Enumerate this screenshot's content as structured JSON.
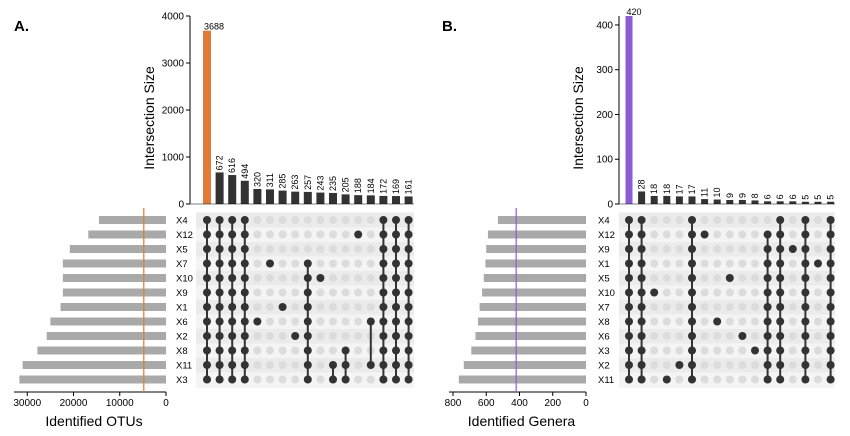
{
  "chart_data": [
    {
      "type": "upset",
      "panel_label": "A.",
      "y_axis_title": "Intersection Size",
      "set_axis_title": "Identified OTUs",
      "accent_color": "#e07b39",
      "bar_color": "#333333",
      "ylim": [
        0,
        4000
      ],
      "yticks": [
        0,
        1000,
        2000,
        3000,
        4000
      ],
      "set_xlim": [
        0,
        32000
      ],
      "set_ticks": [
        0,
        10000,
        20000,
        30000
      ],
      "set_reference_line": 4800,
      "sets": [
        {
          "name": "X4",
          "size": 14500
        },
        {
          "name": "X12",
          "size": 16800
        },
        {
          "name": "X5",
          "size": 20800
        },
        {
          "name": "X7",
          "size": 22300
        },
        {
          "name": "X10",
          "size": 22300
        },
        {
          "name": "X9",
          "size": 22300
        },
        {
          "name": "X1",
          "size": 22800
        },
        {
          "name": "X6",
          "size": 25000
        },
        {
          "name": "X2",
          "size": 25800
        },
        {
          "name": "X8",
          "size": 27800
        },
        {
          "name": "X11",
          "size": 31000
        },
        {
          "name": "X3",
          "size": 31700
        }
      ],
      "intersections": [
        {
          "size": 3688,
          "labels": "3688",
          "members": [
            0,
            1,
            2,
            3,
            4,
            5,
            6,
            7,
            8,
            9,
            10,
            11
          ],
          "highlight": true
        },
        {
          "size": 672,
          "labels": "672",
          "members": [
            0,
            1,
            2,
            3,
            4,
            5,
            6,
            7,
            8,
            9,
            10,
            11
          ]
        },
        {
          "size": 616,
          "labels": "616",
          "members": [
            0,
            1,
            2,
            3,
            4,
            5,
            6,
            7,
            8,
            9,
            10,
            11
          ]
        },
        {
          "size": 494,
          "labels": "494",
          "members": [
            0,
            1,
            2,
            3,
            4,
            5,
            6,
            7,
            8,
            9,
            10,
            11
          ]
        },
        {
          "size": 320,
          "labels": "320",
          "members": [
            7
          ]
        },
        {
          "size": 311,
          "labels": "311",
          "members": [
            3
          ]
        },
        {
          "size": 285,
          "labels": "285",
          "members": [
            6
          ]
        },
        {
          "size": 263,
          "labels": "263",
          "members": [
            8
          ]
        },
        {
          "size": 257,
          "labels": "257",
          "members": [
            3,
            4,
            5,
            6,
            7,
            8,
            9,
            10,
            11
          ]
        },
        {
          "size": 243,
          "labels": "243",
          "members": [
            4
          ]
        },
        {
          "size": 235,
          "labels": "235",
          "members": [
            10,
            11
          ]
        },
        {
          "size": 205,
          "labels": "205",
          "members": [
            9,
            10,
            11
          ]
        },
        {
          "size": 188,
          "labels": "188",
          "members": [
            1
          ]
        },
        {
          "size": 184,
          "labels": "184",
          "members": [
            7,
            10
          ]
        },
        {
          "size": 172,
          "labels": "172",
          "members": [
            0,
            1,
            2,
            3,
            4,
            5,
            6,
            7,
            8,
            9,
            10,
            11
          ]
        },
        {
          "size": 169,
          "labels": "169",
          "members": [
            0,
            1,
            2,
            3,
            4,
            5,
            6,
            7,
            8,
            9,
            10,
            11
          ]
        },
        {
          "size": 161,
          "labels": "161",
          "members": [
            0,
            1,
            2,
            3,
            4,
            5,
            6,
            7,
            8,
            9,
            10,
            11
          ]
        }
      ]
    },
    {
      "type": "upset",
      "panel_label": "B.",
      "y_axis_title": "Intersection Size",
      "set_axis_title": "Identified Genera",
      "accent_color": "#8a5cd6",
      "bar_color": "#333333",
      "ylim": [
        0,
        420
      ],
      "yticks": [
        0,
        100,
        200,
        300,
        400
      ],
      "set_xlim": [
        0,
        800
      ],
      "set_ticks": [
        0,
        200,
        400,
        600,
        800
      ],
      "set_reference_line": 420,
      "sets": [
        {
          "name": "X4",
          "size": 530
        },
        {
          "name": "X12",
          "size": 590
        },
        {
          "name": "X9",
          "size": 600
        },
        {
          "name": "X1",
          "size": 605
        },
        {
          "name": "X5",
          "size": 615
        },
        {
          "name": "X10",
          "size": 625
        },
        {
          "name": "X7",
          "size": 640
        },
        {
          "name": "X8",
          "size": 650
        },
        {
          "name": "X6",
          "size": 665
        },
        {
          "name": "X3",
          "size": 690
        },
        {
          "name": "X2",
          "size": 735
        },
        {
          "name": "X11",
          "size": 765
        }
      ],
      "intersections": [
        {
          "size": 420,
          "labels": "420",
          "members": [
            0,
            1,
            2,
            3,
            4,
            5,
            6,
            7,
            8,
            9,
            10,
            11
          ],
          "highlight": true
        },
        {
          "size": 28,
          "labels": "28",
          "members": [
            0,
            1,
            2,
            3,
            4,
            5,
            6,
            7,
            8,
            9,
            10,
            11
          ]
        },
        {
          "size": 18,
          "labels": "18",
          "members": [
            5
          ]
        },
        {
          "size": 18,
          "labels": "18",
          "members": [
            11
          ]
        },
        {
          "size": 17,
          "labels": "17",
          "members": [
            10
          ]
        },
        {
          "size": 17,
          "labels": "17",
          "members": [
            0,
            1,
            2,
            3,
            4,
            5,
            6,
            7,
            8,
            9,
            10,
            11
          ]
        },
        {
          "size": 11,
          "labels": "11",
          "members": [
            1
          ]
        },
        {
          "size": 10,
          "labels": "10",
          "members": [
            7
          ]
        },
        {
          "size": 9,
          "labels": "9",
          "members": [
            4
          ]
        },
        {
          "size": 9,
          "labels": "9",
          "members": [
            8
          ]
        },
        {
          "size": 8,
          "labels": "8",
          "members": [
            9
          ]
        },
        {
          "size": 6,
          "labels": "6",
          "members": [
            1,
            2,
            3,
            4,
            5,
            6,
            7,
            8,
            9,
            10,
            11
          ]
        },
        {
          "size": 6,
          "labels": "6",
          "members": [
            0,
            1,
            2,
            3,
            4,
            5,
            6,
            7,
            8,
            9,
            10,
            11
          ]
        },
        {
          "size": 6,
          "labels": "6",
          "members": [
            2
          ]
        },
        {
          "size": 5,
          "labels": "5",
          "members": [
            0,
            1,
            2,
            3,
            4,
            5,
            6,
            7,
            8,
            9,
            10,
            11
          ]
        },
        {
          "size": 5,
          "labels": "5",
          "members": [
            3
          ]
        },
        {
          "size": 5,
          "labels": "5",
          "members": [
            0,
            1,
            2,
            3,
            4,
            5,
            6,
            7,
            8,
            9,
            10,
            11
          ]
        }
      ]
    }
  ]
}
